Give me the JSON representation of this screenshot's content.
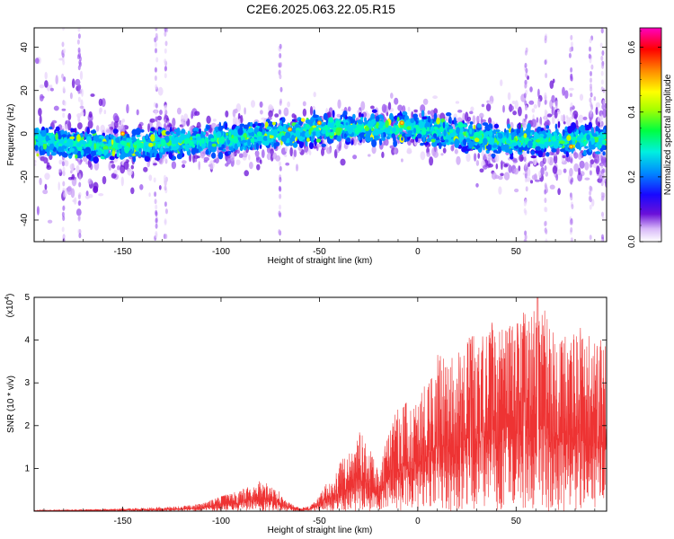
{
  "title": "C2E6.2025.063.22.05.R15",
  "chart_data": [
    {
      "type": "heatmap",
      "xlabel": "Height of straight line (km)",
      "ylabel": "Frequency (Hz)",
      "xlim": [
        -195,
        96
      ],
      "ylim": [
        -50,
        49
      ],
      "x_ticks": [
        -150,
        -100,
        -50,
        0,
        50
      ],
      "y_ticks": [
        -40,
        -20,
        0,
        20,
        40
      ],
      "colorbar": {
        "label": "Normalized spectral amplitude",
        "range": [
          0,
          0.66
        ],
        "ticks": [
          0.0,
          0.2,
          0.4,
          0.6
        ],
        "colormap": [
          "#ffffff",
          "#5000c8",
          "#0000ff",
          "#00aaff",
          "#00ffb0",
          "#00ff00",
          "#c8ff00",
          "#ffff00",
          "#ff8800",
          "#ff0000",
          "#ff00c0"
        ]
      },
      "band": {
        "center_hz": [
          [
            -195,
            -3
          ],
          [
            -160,
            -6
          ],
          [
            -100,
            -3
          ],
          [
            -50,
            2
          ],
          [
            0,
            3
          ],
          [
            40,
            -3
          ],
          [
            96,
            -3
          ]
        ],
        "halfwidth_hz": 10
      },
      "grid": false,
      "legend": "none"
    },
    {
      "type": "line",
      "xlabel": "Height of straight line (km)",
      "ylabel": "SNR (10 * v/v)",
      "y_multiplier": "(x10",
      "y_multiplier_exp": "4",
      "y_multiplier_close": ")",
      "xlim": [
        -195,
        96
      ],
      "ylim": [
        0,
        5
      ],
      "x_ticks": [
        -150,
        -100,
        -50,
        0,
        50
      ],
      "y_ticks": [
        1,
        2,
        3,
        4,
        5
      ],
      "series": [
        {
          "color": "#ee3333",
          "envelope": [
            [
              -195,
              0.02
            ],
            [
              -160,
              0.05
            ],
            [
              -140,
              0.08
            ],
            [
              -120,
              0.12
            ],
            [
              -110,
              0.18
            ],
            [
              -100,
              0.35
            ],
            [
              -90,
              0.5
            ],
            [
              -80,
              0.75
            ],
            [
              -75,
              0.6
            ],
            [
              -70,
              0.45
            ],
            [
              -65,
              0.2
            ],
            [
              -60,
              0.08
            ],
            [
              -55,
              0.12
            ],
            [
              -50,
              0.35
            ],
            [
              -45,
              0.8
            ],
            [
              -40,
              1.2
            ],
            [
              -35,
              1.4
            ],
            [
              -30,
              1.9
            ],
            [
              -25,
              1.6
            ],
            [
              -20,
              0.9
            ],
            [
              -15,
              1.8
            ],
            [
              -10,
              2.4
            ],
            [
              -5,
              2.6
            ],
            [
              0,
              2.6
            ],
            [
              5,
              3.2
            ],
            [
              10,
              3.5
            ],
            [
              20,
              3.8
            ],
            [
              30,
              4.1
            ],
            [
              40,
              4.3
            ],
            [
              50,
              4.5
            ],
            [
              60,
              4.6
            ],
            [
              70,
              4.4
            ],
            [
              80,
              4.2
            ],
            [
              90,
              4.0
            ],
            [
              96,
              4.0
            ]
          ],
          "peak": [
            61,
            5.0
          ]
        }
      ],
      "grid": false,
      "legend": "none"
    }
  ]
}
